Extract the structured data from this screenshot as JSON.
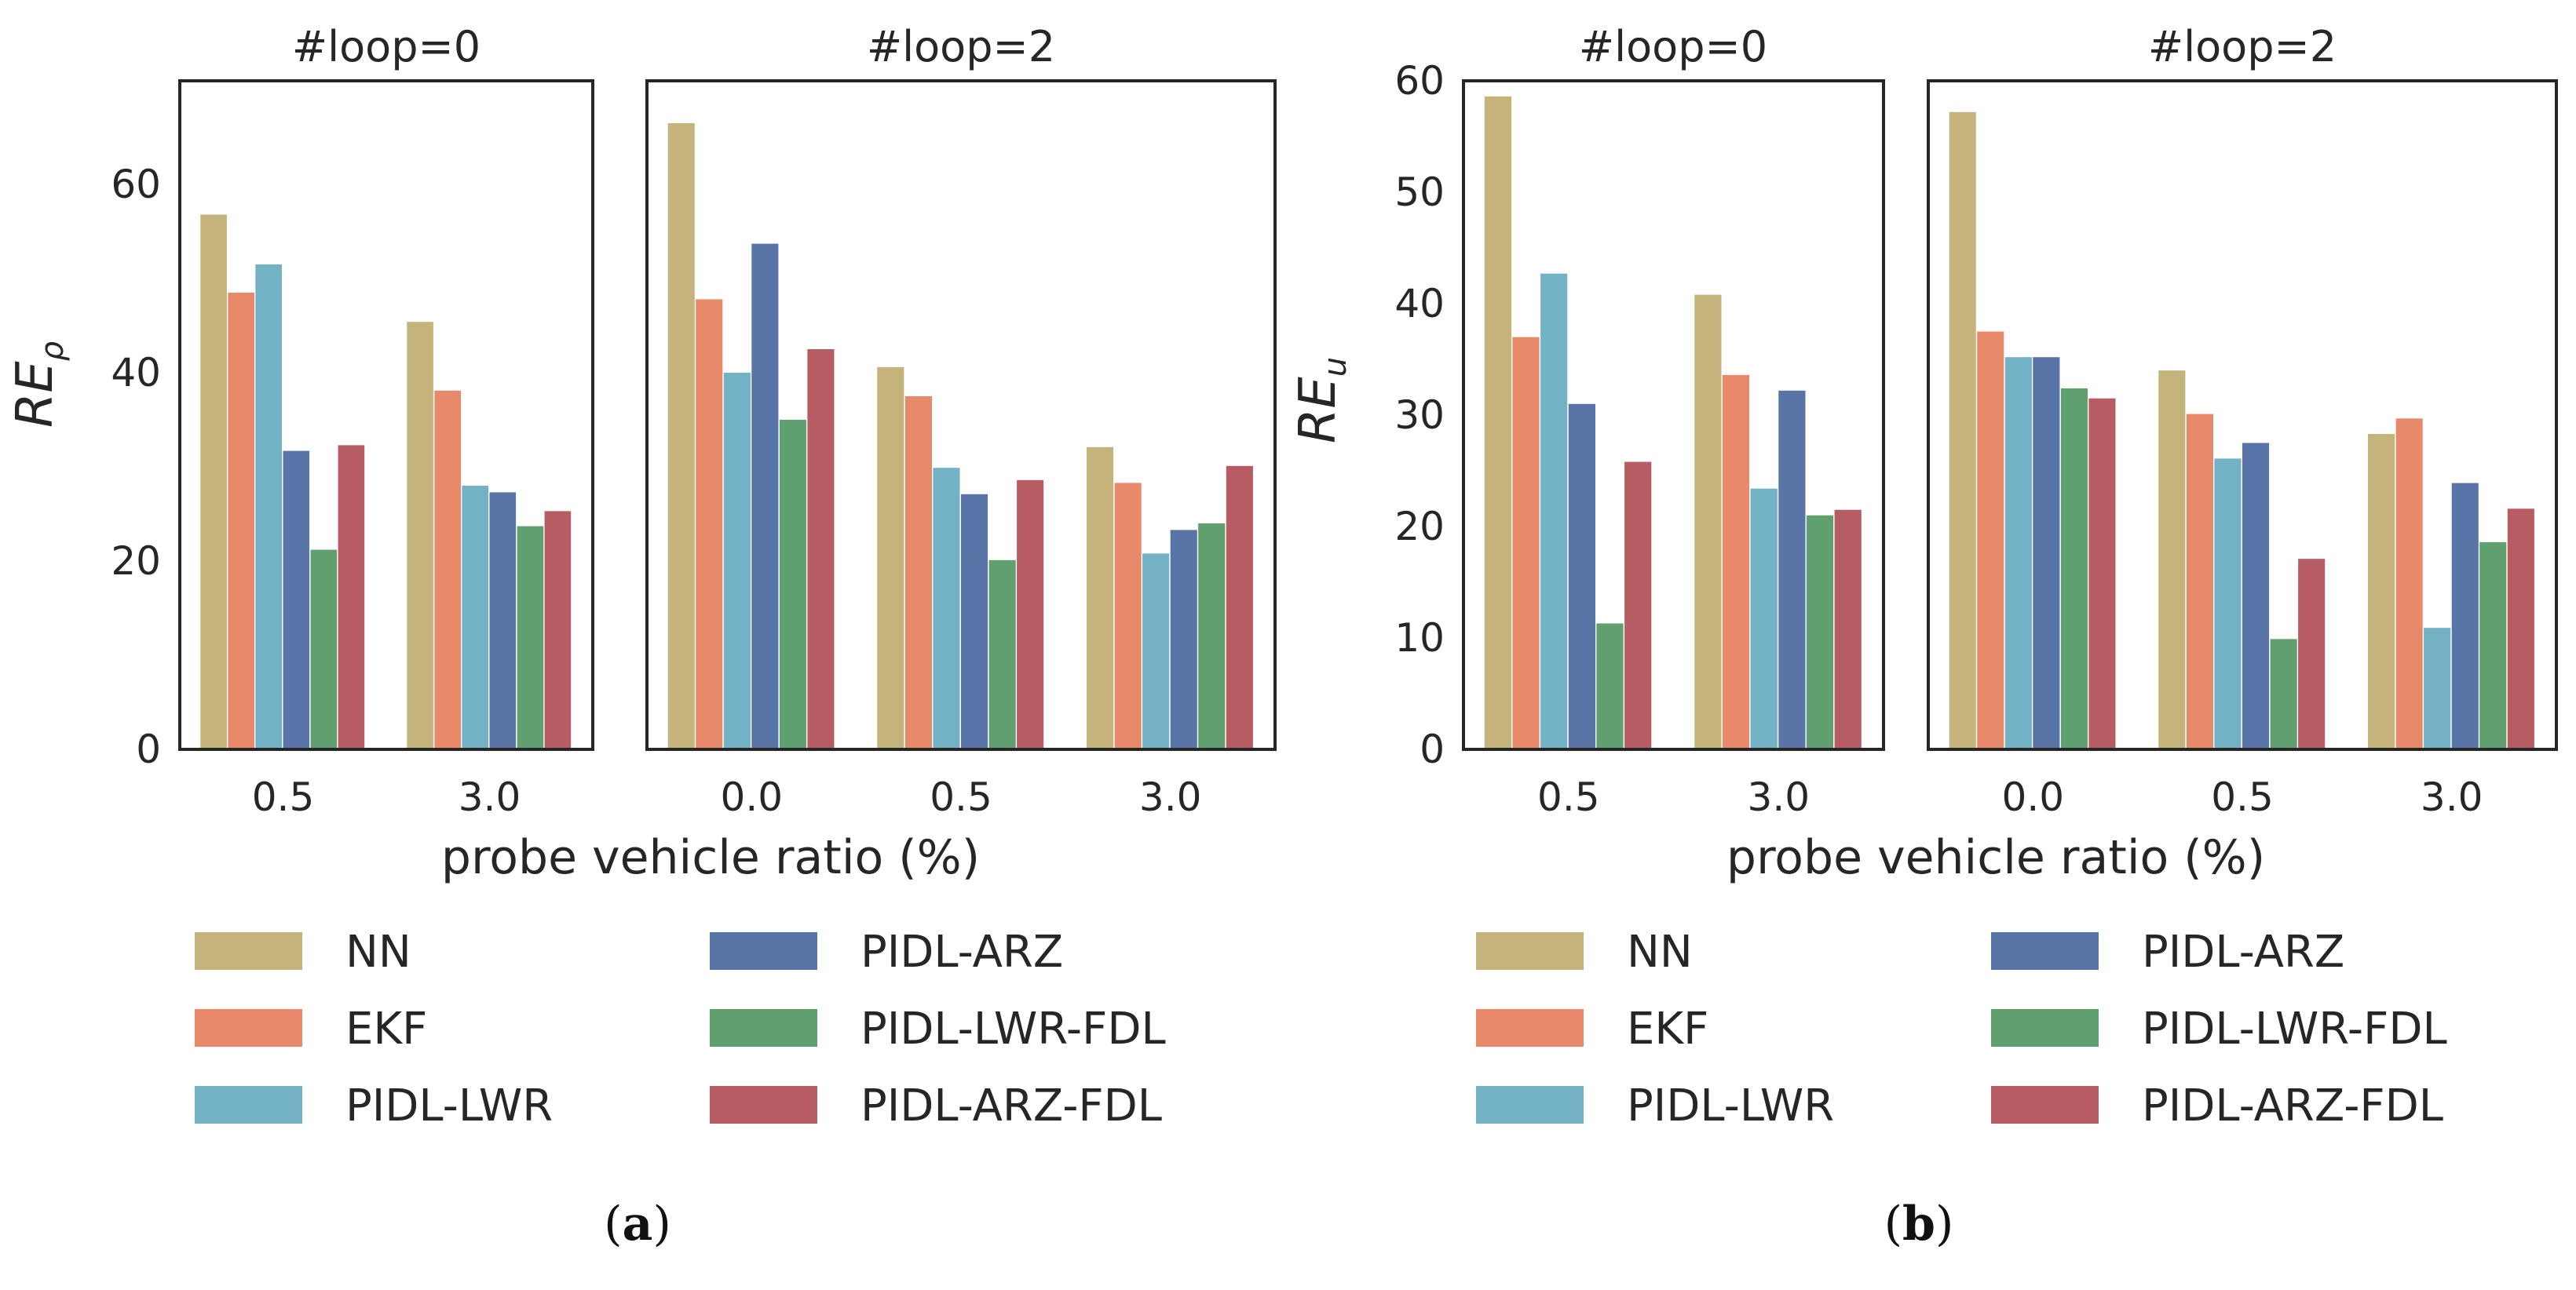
{
  "colors": {
    "NN": "#C4B37B",
    "EKF": "#E8896A",
    "PIDL-LWR": "#73B1C4",
    "PIDL-ARZ": "#5974A6",
    "PIDL-LWR-FDL": "#60A06E",
    "PIDL-ARZ-FDL": "#B85C63"
  },
  "legend": {
    "entries": [
      "NN",
      "EKF",
      "PIDL-LWR",
      "PIDL-ARZ",
      "PIDL-LWR-FDL",
      "PIDL-ARZ-FDL"
    ]
  },
  "chart_data": [
    {
      "type": "bar",
      "figure": "a",
      "caption": "a",
      "xlabel": "probe vehicle ratio (%)",
      "ylabel_main": "RE",
      "ylabel_sub": "ρ",
      "ylim": [
        0,
        71
      ],
      "yticks": [
        0,
        20,
        40,
        60
      ],
      "panels": [
        {
          "title": "#loop=0",
          "categories": [
            "0.5",
            "3.0"
          ],
          "series": [
            {
              "name": "NN",
              "values": [
                56.8,
                45.4
              ]
            },
            {
              "name": "EKF",
              "values": [
                48.5,
                38.1
              ]
            },
            {
              "name": "PIDL-LWR",
              "values": [
                51.5,
                28.0
              ]
            },
            {
              "name": "PIDL-ARZ",
              "values": [
                31.7,
                27.3
              ]
            },
            {
              "name": "PIDL-LWR-FDL",
              "values": [
                21.2,
                23.7
              ]
            },
            {
              "name": "PIDL-ARZ-FDL",
              "values": [
                32.3,
                25.3
              ]
            }
          ]
        },
        {
          "title": "#loop=2",
          "categories": [
            "0.0",
            "0.5",
            "3.0"
          ],
          "series": [
            {
              "name": "NN",
              "values": [
                66.5,
                40.6,
                32.1
              ]
            },
            {
              "name": "EKF",
              "values": [
                47.8,
                37.5,
                28.3
              ]
            },
            {
              "name": "PIDL-LWR",
              "values": [
                40.0,
                29.9,
                20.8
              ]
            },
            {
              "name": "PIDL-ARZ",
              "values": [
                53.7,
                27.1,
                23.3
              ]
            },
            {
              "name": "PIDL-LWR-FDL",
              "values": [
                35.0,
                20.1,
                24.0
              ]
            },
            {
              "name": "PIDL-ARZ-FDL",
              "values": [
                42.5,
                28.6,
                30.1
              ]
            }
          ]
        }
      ]
    },
    {
      "type": "bar",
      "figure": "b",
      "caption": "b",
      "xlabel": "probe vehicle ratio (%)",
      "ylabel_main": "RE",
      "ylabel_sub": "u",
      "ylim": [
        0,
        60
      ],
      "yticks": [
        0,
        10,
        20,
        30,
        40,
        50,
        60
      ],
      "panels": [
        {
          "title": "#loop=0",
          "categories": [
            "0.5",
            "3.0"
          ],
          "series": [
            {
              "name": "NN",
              "values": [
                58.6,
                40.8
              ]
            },
            {
              "name": "EKF",
              "values": [
                37.0,
                33.6
              ]
            },
            {
              "name": "PIDL-LWR",
              "values": [
                42.7,
                23.4
              ]
            },
            {
              "name": "PIDL-ARZ",
              "values": [
                31.0,
                32.2
              ]
            },
            {
              "name": "PIDL-LWR-FDL",
              "values": [
                11.3,
                21.0
              ]
            },
            {
              "name": "PIDL-ARZ-FDL",
              "values": [
                25.8,
                21.5
              ]
            }
          ]
        },
        {
          "title": "#loop=2",
          "categories": [
            "0.0",
            "0.5",
            "3.0"
          ],
          "series": [
            {
              "name": "NN",
              "values": [
                57.2,
                34.0,
                28.3
              ]
            },
            {
              "name": "EKF",
              "values": [
                37.5,
                30.1,
                29.7
              ]
            },
            {
              "name": "PIDL-LWR",
              "values": [
                35.2,
                26.1,
                10.9
              ]
            },
            {
              "name": "PIDL-ARZ",
              "values": [
                35.2,
                27.5,
                23.9
              ]
            },
            {
              "name": "PIDL-LWR-FDL",
              "values": [
                32.4,
                9.9,
                18.6
              ]
            },
            {
              "name": "PIDL-ARZ-FDL",
              "values": [
                31.5,
                17.1,
                21.6
              ]
            }
          ]
        }
      ]
    }
  ]
}
